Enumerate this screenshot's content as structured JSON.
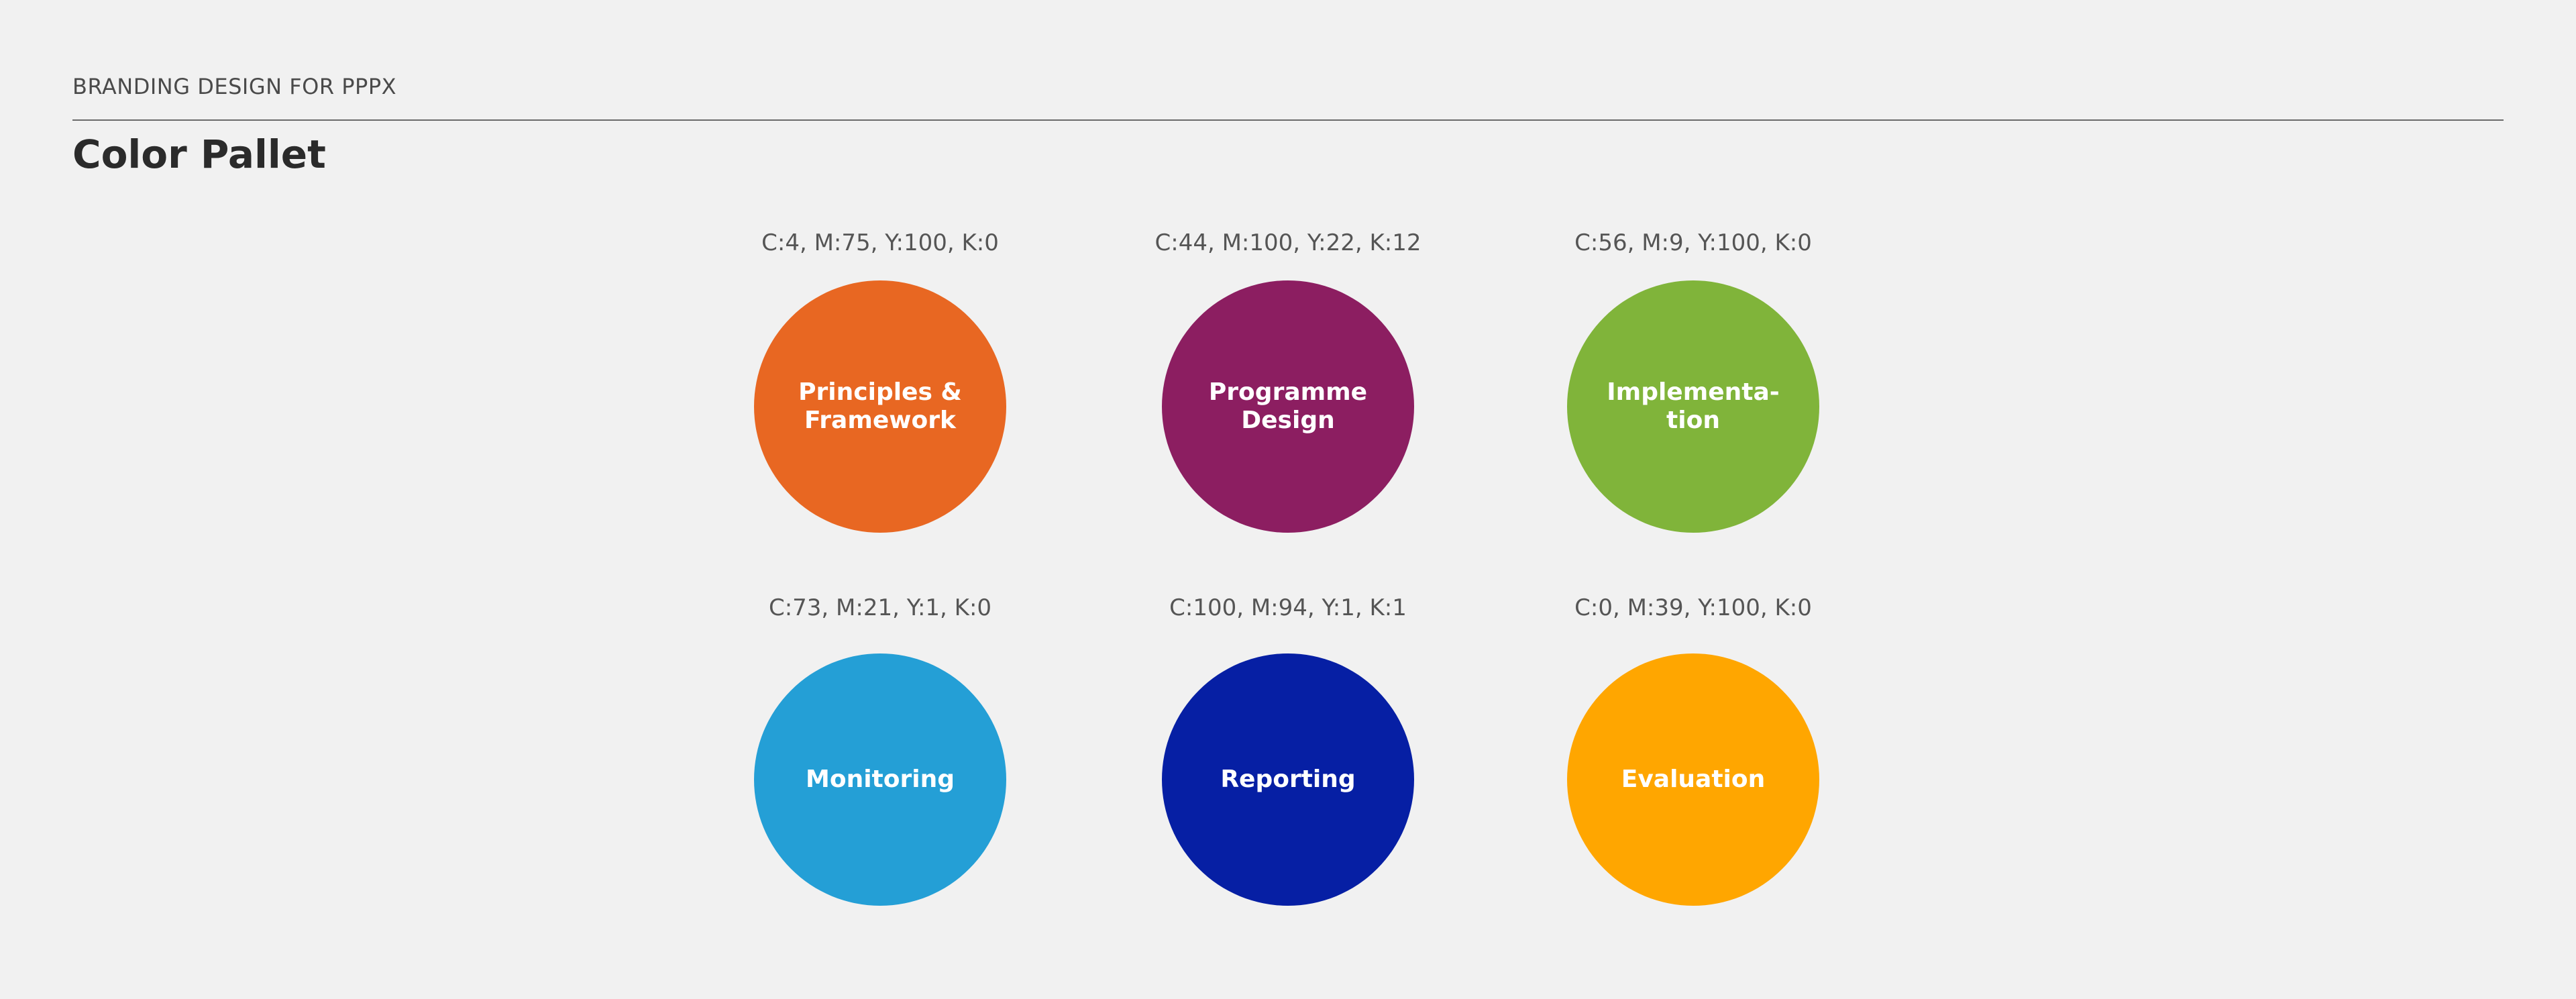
{
  "header": {
    "kicker": "BRANDING DESIGN FOR PPPX",
    "title": "Color Pallet"
  },
  "swatches": [
    {
      "cmyk": "C:4, M:75, Y:100, K:0",
      "label": "Principles &\nFramework",
      "color": "#e86722"
    },
    {
      "cmyk": "C:44, M:100, Y:22, K:12",
      "label": "Programme\nDesign",
      "color": "#8c1e61"
    },
    {
      "cmyk": "C:56, M:9, Y:100, K:0",
      "label": "Implementa-\ntion",
      "color": "#80b43a"
    },
    {
      "cmyk": "C:73, M:21, Y:1, K:0",
      "label": "Monitoring",
      "color": "#249fd6"
    },
    {
      "cmyk": "C:100, M:94, Y:1, K:1",
      "label": "Reporting",
      "color": "#061fa4"
    },
    {
      "cmyk": "C:0, M:39, Y:100, K:0",
      "label": "Evaluation",
      "color": "#ffa600"
    }
  ]
}
